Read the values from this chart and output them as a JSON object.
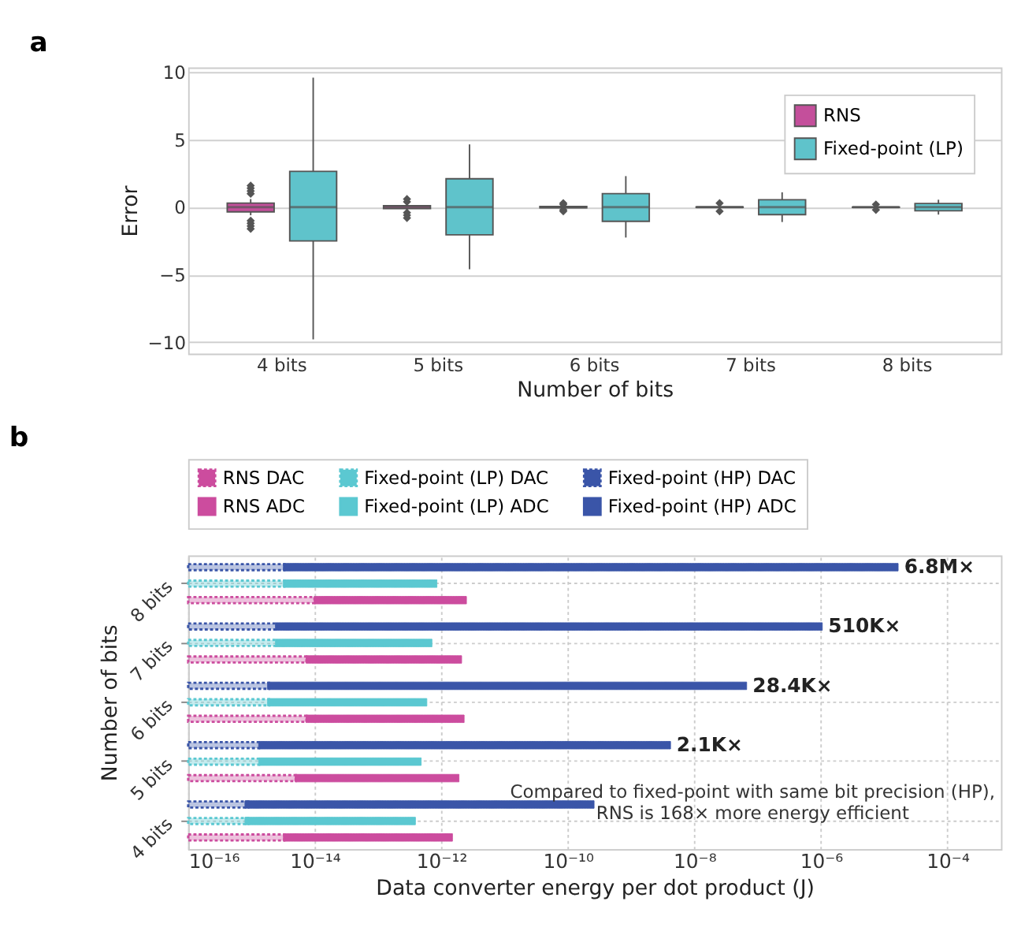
{
  "chart_data": [
    {
      "type": "box",
      "title": "a",
      "xlabel": "Number of bits",
      "ylabel": "Error",
      "categories": [
        "4 bits",
        "5 bits",
        "6 bits",
        "7 bits",
        "8 bits"
      ],
      "ylim": [
        -10.85,
        10.35
      ],
      "yticks": [
        {
          "value": -10,
          "label": "−10"
        },
        {
          "value": -5,
          "label": "−5"
        },
        0,
        5,
        10
      ],
      "grid": "y",
      "legend": "top right",
      "series": [
        {
          "name": "RNS",
          "color": "#c44f9b",
          "boxes": [
            {
              "low": -0.6,
              "q1": -0.35,
              "median": 0,
              "q3": 0.3,
              "high": 0.6,
              "outliers": [
                1.0,
                1.2,
                1.4,
                1.6,
                -1.0,
                -1.2,
                -1.4,
                -1.6
              ]
            },
            {
              "low": -0.2,
              "q1": -0.1,
              "median": 0,
              "q3": 0.1,
              "high": 0.2,
              "outliers": [
                0.4,
                0.6,
                -0.4,
                -0.6,
                -0.8
              ]
            },
            {
              "low": -0.1,
              "q1": -0.05,
              "median": 0,
              "q3": 0.05,
              "high": 0.1,
              "outliers": [
                0.2,
                0.3,
                -0.2,
                -0.3
              ]
            },
            {
              "low": -0.05,
              "q1": -0.02,
              "median": 0,
              "q3": 0.02,
              "high": 0.05,
              "outliers": [
                0.3,
                -0.3
              ]
            },
            {
              "low": -0.03,
              "q1": -0.01,
              "median": 0,
              "q3": 0.01,
              "high": 0.03,
              "outliers": [
                0.2,
                -0.2
              ]
            }
          ]
        },
        {
          "name": "Fixed-point (LP)",
          "color": "#5fc3cb",
          "boxes": [
            {
              "low": -9.8,
              "q1": -2.5,
              "median": 0,
              "q3": 2.65,
              "high": 9.6
            },
            {
              "low": -4.6,
              "q1": -2.05,
              "median": 0,
              "q3": 2.1,
              "high": 4.65
            },
            {
              "low": -2.25,
              "q1": -1.05,
              "median": 0,
              "q3": 1.0,
              "high": 2.3
            },
            {
              "low": -1.1,
              "q1": -0.55,
              "median": 0,
              "q3": 0.55,
              "high": 1.1
            },
            {
              "low": -0.55,
              "q1": -0.27,
              "median": 0,
              "q3": 0.27,
              "high": 0.55
            }
          ]
        }
      ]
    },
    {
      "type": "bar",
      "title": "b",
      "orientation": "horizontal",
      "log": "x",
      "xlabel": "Data converter energy per dot product (J)",
      "ylabel": "Number of bits",
      "categories": [
        "8 bits",
        "7 bits",
        "6 bits",
        "5 bits",
        "4 bits"
      ],
      "xlim": [
        1e-16,
        0.0007
      ],
      "xticks": [
        {
          "value": 1e-16,
          "label": "10⁻¹⁶"
        },
        {
          "value": 1e-14,
          "label": "10⁻¹⁴"
        },
        {
          "value": 1e-12,
          "label": "10⁻¹²"
        },
        {
          "value": 1e-10,
          "label": "10⁻¹⁰"
        },
        {
          "value": 1e-08,
          "label": "10⁻⁸"
        },
        {
          "value": 1e-06,
          "label": "10⁻⁶"
        },
        {
          "value": 0.0001,
          "label": "10⁻⁴"
        }
      ],
      "grid": true,
      "legend": "top",
      "series": [
        {
          "name": "RNS DAC",
          "color": "#cc4c9e",
          "line_style": "dotted",
          "values": [
            9.8e-15,
            7.3e-15,
            7.3e-15,
            4.9e-15,
            3.2e-15
          ]
        },
        {
          "name": "Fixed-point (LP) DAC",
          "color": "#5bc8d1",
          "line_style": "dotted",
          "values": [
            3.2e-15,
            2.4e-15,
            1.8e-15,
            1.3e-15,
            7.9e-16
          ]
        },
        {
          "name": "Fixed-point (HP) DAC",
          "color": "#3a55a8",
          "line_style": "dotted",
          "values": [
            3.2e-15,
            2.4e-15,
            1.8e-15,
            1.3e-15,
            7.9e-16
          ]
        },
        {
          "name": "RNS ADC",
          "color": "#cc4c9e",
          "line_style": "solid",
          "base": [
            9.8e-15,
            7.3e-15,
            7.3e-15,
            4.9e-15,
            3.2e-15
          ],
          "values": [
            2.49e-12,
            2.09e-12,
            2.29e-12,
            1.9e-12,
            1.5e-12
          ]
        },
        {
          "name": "Fixed-point (LP) ADC",
          "color": "#5bc8d1",
          "line_style": "solid",
          "base": [
            3.2e-15,
            2.4e-15,
            1.8e-15,
            1.3e-15,
            7.9e-16
          ],
          "values": [
            8.5e-13,
            7.1e-13,
            5.9e-13,
            4.8e-13,
            3.9e-13
          ]
        },
        {
          "name": "Fixed-point (HP) ADC",
          "color": "#3a55a8",
          "line_style": "solid",
          "base": [
            3.2e-15,
            2.4e-15,
            1.8e-15,
            1.3e-15,
            7.9e-16
          ],
          "values": [
            1.66e-05,
            1.05e-06,
            6.7e-08,
            4.2e-09,
            2.6e-10
          ]
        }
      ],
      "annotations": [
        "6.8M×",
        "510K×",
        "28.4K×",
        "2.1K×",
        "Compared to fixed-point with same bit precision (HP),\nRNS is 168× more energy efficient"
      ]
    }
  ]
}
